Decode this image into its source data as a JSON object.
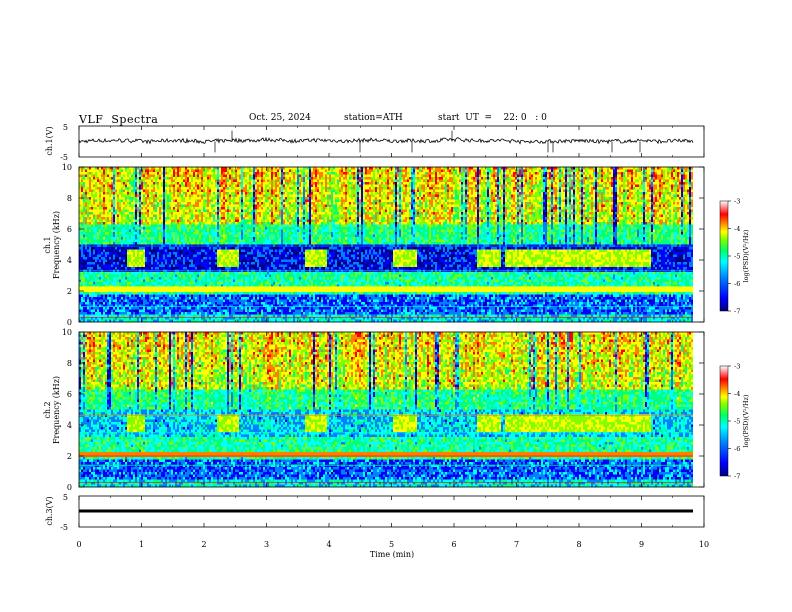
{
  "header": {
    "title": "VLF  Spectra",
    "date": "Oct. 25, 2024",
    "station": "station=ATH",
    "start": "start  UT  =    22: 0   : 0"
  },
  "chart_data": [
    {
      "type": "line",
      "panel": "ch1-waveform",
      "ylabel": "ch.1(V)",
      "ylim": [
        -5,
        5
      ],
      "yticks": [
        "5",
        "-5"
      ],
      "xlim": [
        0,
        10
      ],
      "series": [
        {
          "values_approx": "noisy waveform around 0 V, amplitude about ±1 V with sparse spikes",
          "baseline": 0
        }
      ]
    },
    {
      "type": "heatmap",
      "panel": "ch1-spectrogram",
      "ylabel_top": "ch.1",
      "ylabel": "Frequency  (kHz)",
      "ylim": [
        0,
        10
      ],
      "yticks": [
        "10",
        "8",
        "6",
        "4",
        "2",
        "0"
      ],
      "xlim": [
        0,
        10
      ],
      "colorbar": {
        "label": "log(PSD)(V²/Hz)",
        "range": [
          -7,
          -3
        ],
        "ticks": [
          "-3",
          "-4",
          "-5",
          "-6",
          "-7"
        ]
      },
      "bursts_min": [
        [
          0.75,
          1.05
        ],
        [
          2.2,
          2.55
        ],
        [
          3.6,
          3.95
        ],
        [
          5.0,
          5.4
        ],
        [
          6.35,
          6.75
        ],
        [
          6.8,
          9.15
        ]
      ]
    },
    {
      "type": "heatmap",
      "panel": "ch2-spectrogram",
      "ylabel_top": "ch.2",
      "ylabel": "Frequency  (kHz)",
      "ylim": [
        0,
        10
      ],
      "yticks": [
        "10",
        "8",
        "6",
        "4",
        "2",
        "0"
      ],
      "xlim": [
        0,
        10
      ],
      "colorbar": {
        "label": "log(PSD)(V²/Hz)",
        "range": [
          -7,
          -3
        ],
        "ticks": [
          "-3",
          "-4",
          "-5",
          "-6",
          "-7"
        ]
      },
      "bursts_min": [
        [
          0.75,
          1.05
        ],
        [
          2.2,
          2.55
        ],
        [
          3.6,
          3.95
        ],
        [
          5.0,
          5.4
        ],
        [
          6.35,
          6.75
        ],
        [
          6.8,
          9.15
        ]
      ]
    },
    {
      "type": "line",
      "panel": "ch3-waveform",
      "ylabel": "ch.3(V)",
      "ylim": [
        -5,
        5
      ],
      "yticks": [
        "5",
        "-5"
      ],
      "xlabel": "Time  (min)",
      "xlim": [
        0,
        10
      ],
      "xticks": [
        "0",
        "1",
        "2",
        "3",
        "4",
        "5",
        "6",
        "7",
        "8",
        "9",
        "10"
      ],
      "series": [
        {
          "values_approx": "flat line",
          "baseline": -2
        }
      ]
    }
  ],
  "colors": {
    "scale": [
      "#000080",
      "#0000ff",
      "#0080ff",
      "#00ffff",
      "#00ff80",
      "#80ff00",
      "#ffff00",
      "#ff8000",
      "#ff0000",
      "#ffffff"
    ]
  }
}
